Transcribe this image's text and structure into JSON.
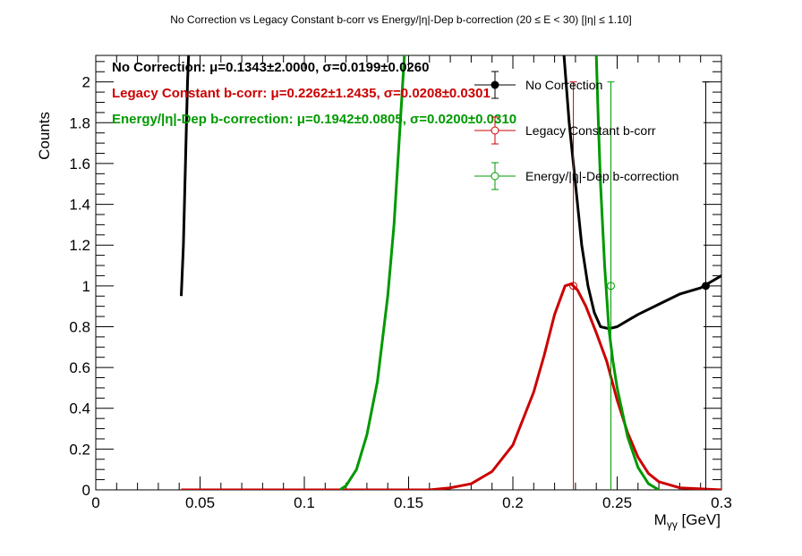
{
  "chart_data": {
    "type": "line",
    "title": "No Correction vs Legacy Constant b-corr vs Energy/|η|-Dep b-correction   (20 ≤ E < 30)   [|η| ≤ 1.10]",
    "xlabel": "M",
    "xlabel_sub": "γγ",
    "xlabel_unit": " [GeV]",
    "ylabel": "Counts",
    "xlim": [
      0,
      0.3
    ],
    "ylim": [
      0,
      2.13
    ],
    "xticks": [
      "0",
      "0.05",
      "0.1",
      "0.15",
      "0.2",
      "0.25",
      "0.3"
    ],
    "yticks": [
      "0",
      "0.2",
      "0.4",
      "0.6",
      "0.8",
      "1",
      "1.2",
      "1.4",
      "1.6",
      "1.8",
      "2"
    ],
    "grid": false,
    "legend_position": "top-right",
    "series": [
      {
        "name": "No Correction",
        "color": "#000000",
        "marker": "filled-circle",
        "points": [
          {
            "x": 0.2925,
            "y": 1.0,
            "yerr_low": 1.0,
            "yerr_high": 1.0
          }
        ],
        "fit_segments": [
          [
            [
              0.041,
              0.95
            ],
            [
              0.042,
              1.2
            ],
            [
              0.043,
              1.6
            ],
            [
              0.044,
              2.0
            ],
            [
              0.0445,
              2.13
            ]
          ],
          [
            [
              0.2245,
              2.13
            ],
            [
              0.227,
              1.8
            ],
            [
              0.23,
              1.5
            ],
            [
              0.233,
              1.2
            ],
            [
              0.236,
              1.0
            ],
            [
              0.239,
              0.87
            ],
            [
              0.242,
              0.8
            ],
            [
              0.246,
              0.79
            ],
            [
              0.25,
              0.8
            ],
            [
              0.255,
              0.83
            ],
            [
              0.26,
              0.86
            ],
            [
              0.27,
              0.91
            ],
            [
              0.28,
              0.96
            ],
            [
              0.29,
              0.99
            ],
            [
              0.3,
              1.05
            ]
          ]
        ]
      },
      {
        "name": "Legacy Constant b-corr",
        "color": "#cc0000",
        "marker": "open-circle",
        "points": [
          {
            "x": 0.229,
            "y": 1.0,
            "yerr_low": 1.0,
            "yerr_high": 1.0
          }
        ],
        "fit_segments": [
          [
            [
              0.041,
              0.0
            ],
            [
              0.16,
              0.0
            ],
            [
              0.17,
              0.01
            ],
            [
              0.18,
              0.03
            ],
            [
              0.19,
              0.09
            ],
            [
              0.2,
              0.22
            ],
            [
              0.21,
              0.48
            ],
            [
              0.215,
              0.66
            ],
            [
              0.22,
              0.86
            ],
            [
              0.225,
              1.0
            ],
            [
              0.228,
              1.01
            ],
            [
              0.231,
              0.98
            ],
            [
              0.235,
              0.9
            ],
            [
              0.24,
              0.77
            ],
            [
              0.245,
              0.63
            ],
            [
              0.25,
              0.44
            ],
            [
              0.255,
              0.28
            ],
            [
              0.26,
              0.16
            ],
            [
              0.265,
              0.08
            ],
            [
              0.27,
              0.04
            ],
            [
              0.28,
              0.01
            ],
            [
              0.3,
              0.0
            ]
          ]
        ]
      },
      {
        "name": "Energy/|η|-Dep b-correction",
        "color": "#009900",
        "marker": "open-circle",
        "points": [
          {
            "x": 0.247,
            "y": 1.0,
            "yerr_low": 1.0,
            "yerr_high": 1.0
          }
        ],
        "fit_segments": [
          [
            [
              0.117,
              0.0
            ],
            [
              0.12,
              0.02
            ],
            [
              0.125,
              0.1
            ],
            [
              0.13,
              0.27
            ],
            [
              0.135,
              0.53
            ],
            [
              0.14,
              0.95
            ],
            [
              0.143,
              1.3
            ],
            [
              0.146,
              1.8
            ],
            [
              0.148,
              2.13
            ]
          ],
          [
            [
              0.24,
              2.13
            ],
            [
              0.241,
              1.8
            ],
            [
              0.242,
              1.5
            ],
            [
              0.244,
              1.1
            ],
            [
              0.246,
              0.79
            ],
            [
              0.248,
              0.63
            ],
            [
              0.25,
              0.5
            ],
            [
              0.255,
              0.26
            ],
            [
              0.26,
              0.11
            ],
            [
              0.265,
              0.03
            ],
            [
              0.27,
              0.0
            ]
          ]
        ]
      }
    ],
    "annotations": [
      {
        "label": "No Correction:",
        "value": " μ=0.1343±2.0000, σ=0.0199±0.0260",
        "color": "#000000"
      },
      {
        "label": "Legacy Constant b-corr:",
        "value": " μ=0.2262±1.2435, σ=0.0208±0.0301",
        "color": "#cc0000"
      },
      {
        "label": "Energy/|η|-Dep b-correction:",
        "value": " μ=0.1942±0.0805, σ=0.0200±0.0310",
        "color": "#009900"
      }
    ]
  }
}
